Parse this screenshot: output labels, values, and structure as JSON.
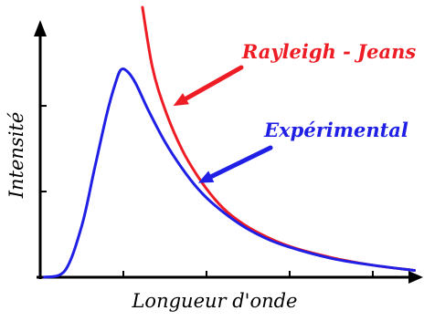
{
  "colors": {
    "rayleigh": "#ee1c24",
    "experimental": "#1f1fe6",
    "axis": "#000000",
    "background": "#ffffff"
  },
  "chart_data": {
    "type": "line",
    "title": "",
    "xlabel": "Longueur d'onde",
    "ylabel": "Intensité",
    "xlim": [
      0,
      4.55
    ],
    "ylim": [
      0,
      3.15
    ],
    "x_ticks": [
      1,
      2,
      3,
      4
    ],
    "y_ticks": [
      1,
      2
    ],
    "tick_labels_shown": false,
    "grid": false,
    "legend": "annotations with arrows",
    "series": [
      {
        "name": "Rayleigh - Jeans",
        "color": "#ee1c24",
        "x": [
          1.23,
          1.35,
          1.5,
          1.7,
          1.9,
          2.1,
          2.3,
          2.6,
          3.0,
          3.5,
          4.0,
          4.5
        ],
        "y": [
          3.15,
          2.45,
          1.96,
          1.5,
          1.17,
          0.91,
          0.72,
          0.53,
          0.36,
          0.23,
          0.14,
          0.08
        ]
      },
      {
        "name": "Expérimental",
        "color": "#1f1fe6",
        "x": [
          0.05,
          0.3,
          0.5,
          0.65,
          0.8,
          0.9,
          0.97,
          1.05,
          1.15,
          1.3,
          1.5,
          1.7,
          1.9,
          2.1,
          2.4,
          2.7,
          3.0,
          3.5,
          4.0,
          4.5
        ],
        "y": [
          0.0,
          0.08,
          0.6,
          1.25,
          1.9,
          2.25,
          2.42,
          2.4,
          2.26,
          1.95,
          1.58,
          1.28,
          1.03,
          0.84,
          0.62,
          0.46,
          0.35,
          0.22,
          0.14,
          0.08
        ]
      }
    ],
    "annotations": [
      {
        "text": "Rayleigh - Jeans",
        "series": 0,
        "arrow_to": [
          1.6,
          2.0
        ]
      },
      {
        "text": "Expérimental",
        "series": 1,
        "arrow_to": [
          1.9,
          1.1
        ]
      }
    ]
  }
}
